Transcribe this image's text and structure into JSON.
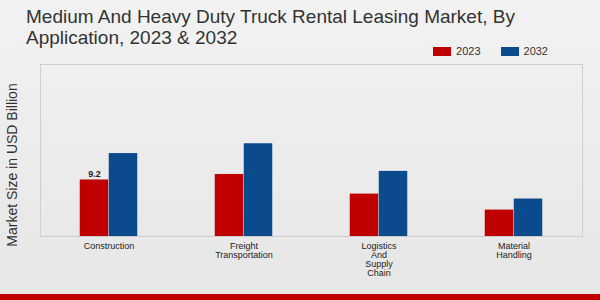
{
  "chart_data": {
    "type": "bar",
    "title": "Medium And Heavy Duty Truck Rental Leasing Market, By Application, 2023 & 2032",
    "y_label": "Market Size in USD Billion",
    "categories": [
      "Construction",
      "Freight Transportation",
      "Logistics And Supply Chain",
      "Material Handling"
    ],
    "series": [
      {
        "name": "2023",
        "color": "#c00000",
        "values": [
          9.2,
          10.1,
          6.9,
          4.3
        ],
        "value_labels": [
          "9.2",
          null,
          null,
          null
        ]
      },
      {
        "name": "2032",
        "color": "#0b4a8c",
        "values": [
          13.5,
          15.1,
          10.6,
          6.1
        ]
      }
    ],
    "ylim": [
      0,
      28
    ],
    "tick_labels": "x",
    "legend": "top-right",
    "grid": false
  }
}
